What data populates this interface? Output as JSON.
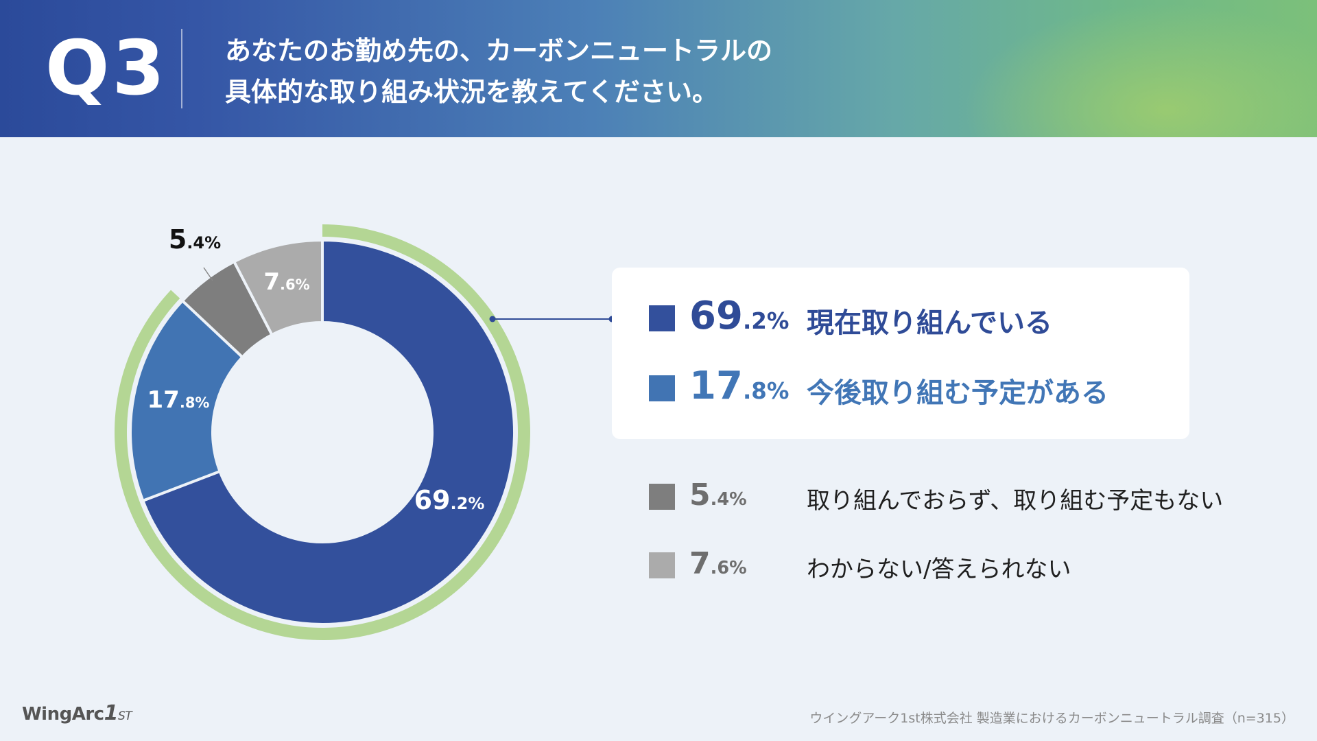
{
  "header": {
    "q_number": "Q3",
    "question_line1": "あなたのお勤め先の、カーボンニュートラルの",
    "question_line2": "具体的な取り組み状況を教えてください。"
  },
  "chart_data": {
    "type": "pie",
    "variant": "donut",
    "unit": "%",
    "slices": [
      {
        "label": "現在取り組んでいる",
        "value": 69.2,
        "int": "69",
        "dec": ".2%",
        "color": "#33509c",
        "highlight": true
      },
      {
        "label": "今後取り組む予定がある",
        "value": 17.8,
        "int": "17",
        "dec": ".8%",
        "color": "#4174b3",
        "highlight": true
      },
      {
        "label": "取り組んでおらず、取り組む予定もない",
        "value": 5.4,
        "int": "5",
        "dec": ".4%",
        "color": "#7e7e7e",
        "highlight": false
      },
      {
        "label": "わからない/答えられない",
        "value": 7.6,
        "int": "7",
        "dec": ".6%",
        "color": "#ababab",
        "highlight": false
      }
    ],
    "highlight_ring_color": "#b4d694"
  },
  "footer": {
    "logo_main": "WingArc",
    "logo_one": "1",
    "logo_st": "ST",
    "source": "ウイングアーク1st株式会社 製造業におけるカーボンニュートラル調査（n=315）"
  }
}
